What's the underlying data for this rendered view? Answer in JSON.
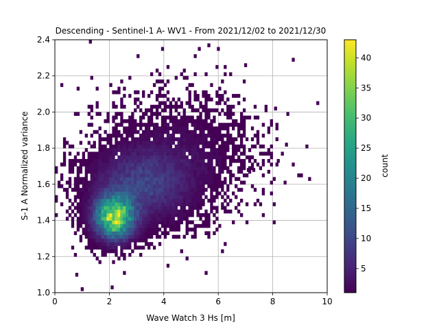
{
  "chart_data": {
    "type": "heatmap",
    "title": "Descending - Sentinel-1 A- WV1 - From 2021/12/02 to 2021/12/30",
    "xlabel": "Wave Watch 3 Hs [m]",
    "ylabel": "S-1 A Normalized variance",
    "xlim": [
      0,
      10
    ],
    "ylim": [
      1.0,
      2.4
    ],
    "xticks": [
      "0",
      "2",
      "4",
      "6",
      "8",
      "10"
    ],
    "yticks": [
      "1.0",
      "1.2",
      "1.4",
      "1.6",
      "1.8",
      "2.0",
      "2.2",
      "2.4"
    ],
    "grid": true,
    "colormap": "viridis",
    "colorbar": {
      "label": "count",
      "range": [
        1,
        43
      ],
      "ticks": [
        "5",
        "10",
        "15",
        "20",
        "25",
        "30",
        "35",
        "40"
      ]
    },
    "bin_size": {
      "x": 0.1,
      "y": 0.02
    },
    "density_model": {
      "components": [
        {
          "x_center": 2.2,
          "y_center": 1.42,
          "x_sigma": 0.45,
          "y_sigma": 0.075,
          "peak_count": 40
        },
        {
          "x_center": 3.2,
          "y_center": 1.6,
          "x_sigma": 1.1,
          "y_sigma": 0.12,
          "peak_count": 9
        },
        {
          "x_center": 4.6,
          "y_center": 1.78,
          "x_sigma": 1.5,
          "y_sigma": 0.17,
          "peak_count": 2
        }
      ],
      "max_count": 43
    },
    "notable_points": [
      {
        "x": 1.3,
        "y": 2.39,
        "count": 1
      },
      {
        "x": 5.3,
        "y": 2.35,
        "count": 1
      },
      {
        "x": 6.0,
        "y": 2.35,
        "count": 1
      },
      {
        "x": 7.0,
        "y": 2.26,
        "count": 1
      },
      {
        "x": 8.1,
        "y": 2.02,
        "count": 1
      },
      {
        "x": 8.5,
        "y": 1.82,
        "count": 1
      },
      {
        "x": 8.2,
        "y": 1.73,
        "count": 1
      },
      {
        "x": 7.3,
        "y": 1.68,
        "count": 1
      },
      {
        "x": 7.1,
        "y": 1.68,
        "count": 1
      },
      {
        "x": 2.1,
        "y": 1.03,
        "count": 1
      },
      {
        "x": 1.0,
        "y": 1.02,
        "count": 1
      },
      {
        "x": 0.8,
        "y": 1.1,
        "count": 2
      },
      {
        "x": 6.9,
        "y": 1.91,
        "count": 1
      }
    ]
  }
}
